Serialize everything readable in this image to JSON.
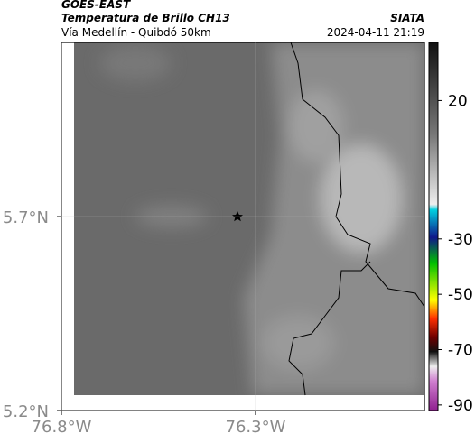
{
  "header": {
    "satellite": "GOES-EAST",
    "product": "Temperatura de Brillo CH13",
    "route": "Vía Medellín - Quibdó 50km",
    "org": "SIATA",
    "datetime": "2024-04-11 21:19"
  },
  "map": {
    "xlim": [
      -76.8,
      -75.865
    ],
    "ylim": [
      5.2,
      6.149
    ],
    "xticks": [
      {
        "value": -76.8,
        "label": "76.8°W"
      },
      {
        "value": -76.3,
        "label": "76.3°W"
      }
    ],
    "yticks": [
      {
        "value": 5.7,
        "label": "5.7°N"
      },
      {
        "value": 5.2,
        "label": "5.2°N"
      }
    ]
  },
  "colorbar": {
    "range": [
      -92,
      41
    ],
    "ticks": [
      20,
      -30,
      -50,
      -70,
      -90
    ]
  }
}
